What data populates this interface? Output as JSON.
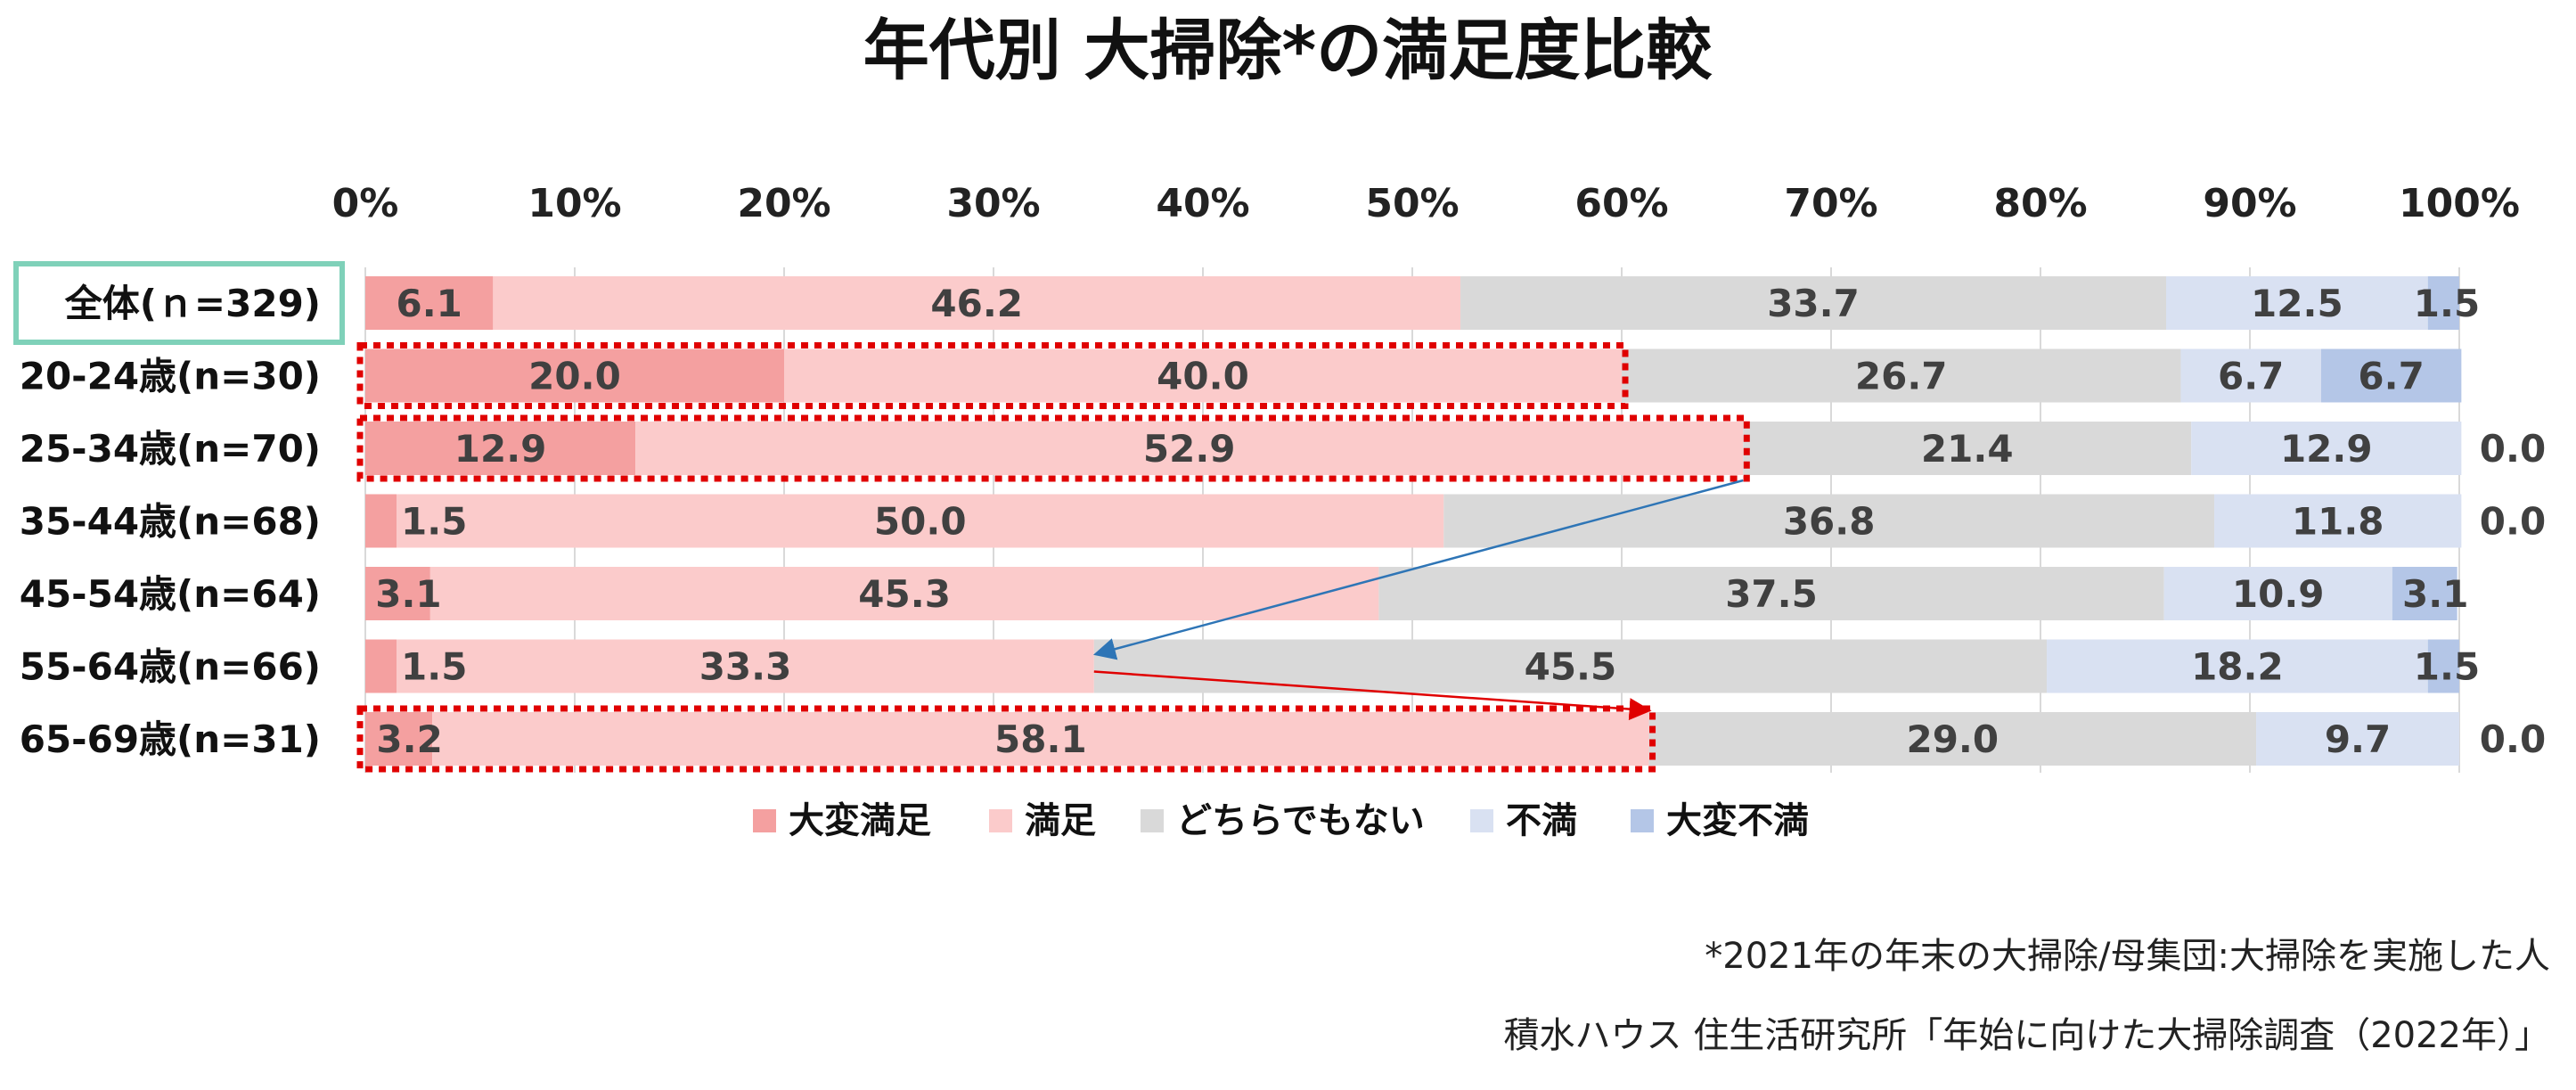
{
  "chart_data": {
    "type": "bar",
    "orientation": "horizontal",
    "stacked": true,
    "percent_stacked": true,
    "title": "年代別 大掃除*の満足度比較",
    "x_ticks": [
      "0%",
      "10%",
      "20%",
      "30%",
      "40%",
      "50%",
      "60%",
      "70%",
      "80%",
      "90%",
      "100%"
    ],
    "xlim": [
      0,
      100
    ],
    "x_grid": true,
    "categories": [
      "全体(ｎ=329)",
      "20-24歳(n=30)",
      "25-34歳(n=70)",
      "35-44歳(n=68)",
      "45-54歳(n=64)",
      "55-64歳(n=66)",
      "65-69歳(n=31)"
    ],
    "series": [
      {
        "name": "大変満足",
        "color": "#F4A0A0",
        "values": [
          6.1,
          20.0,
          12.9,
          1.5,
          3.1,
          1.5,
          3.2
        ]
      },
      {
        "name": "満足",
        "color": "#FBCBCB",
        "values": [
          46.2,
          40.0,
          52.9,
          50.0,
          45.3,
          33.3,
          58.1
        ]
      },
      {
        "name": "どちらでもない",
        "color": "#D9D9D9",
        "values": [
          33.7,
          26.7,
          21.4,
          36.8,
          37.5,
          45.5,
          29.0
        ]
      },
      {
        "name": "不満",
        "color": "#D9E1F2",
        "values": [
          12.5,
          6.7,
          12.9,
          11.8,
          10.9,
          18.2,
          9.7
        ]
      },
      {
        "name": "大変不満",
        "color": "#B4C6E7",
        "values": [
          1.5,
          6.7,
          0.0,
          0.0,
          3.1,
          1.5,
          0.0
        ]
      }
    ],
    "value_labels": [
      [
        "6.1",
        "46.2",
        "33.7",
        "12.5",
        "1.5"
      ],
      [
        "20.0",
        "40.0",
        "26.7",
        "6.7",
        "6.7"
      ],
      [
        "12.9",
        "52.9",
        "21.4",
        "12.9",
        "0.0"
      ],
      [
        "1.5",
        "50.0",
        "36.8",
        "11.8",
        "0.0"
      ],
      [
        "3.1",
        "45.3",
        "37.5",
        "10.9",
        "3.1"
      ],
      [
        "1.5",
        "33.3",
        "45.5",
        "18.2",
        "1.5"
      ],
      [
        "3.2",
        "58.1",
        "29.0",
        "9.7",
        "0.0"
      ]
    ],
    "legend_position": "bottom",
    "highlight_box_category": "全体(ｎ=329)",
    "highlight_box_color": "#7FD1B9",
    "dotted_outline_categories": [
      "20-24歳(n=30)",
      "25-34歳(n=70)",
      "65-69歳(n=31)"
    ],
    "dotted_outline_color": "#E00000",
    "arrows": [
      {
        "from_category": "25-34歳(n=70)",
        "to_category": "55-64歳(n=66)",
        "color": "#2E75B6"
      },
      {
        "from_category": "55-64歳(n=66)",
        "to_category": "65-69歳(n=31)",
        "color": "#E00000"
      }
    ]
  },
  "footnote": "*2021年の年末の大掃除/母集団:大掃除を実施した人",
  "source": "積水ハウス 住生活研究所「年始に向けた大掃除調査（2022年）」"
}
